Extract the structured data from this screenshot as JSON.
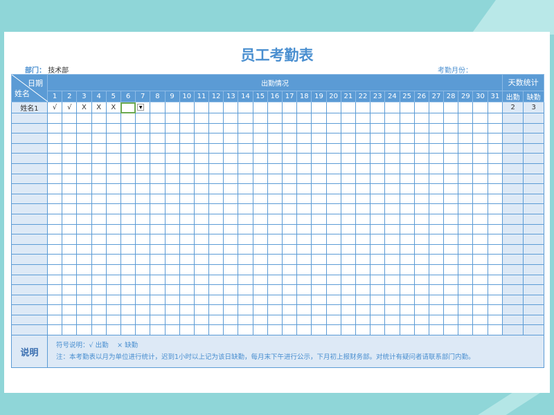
{
  "title": "员工考勤表",
  "dept_label": "部门：",
  "dept_value": "技术部",
  "month_label": "考勤月份：",
  "header": {
    "date": "日期",
    "name": "姓名",
    "attendance": "出勤情况",
    "stats": "天数统计",
    "present": "出勤",
    "absent": "缺勤"
  },
  "days": [
    "1",
    "2",
    "3",
    "4",
    "5",
    "6",
    "7",
    "8",
    "9",
    "10",
    "11",
    "12",
    "13",
    "14",
    "15",
    "16",
    "17",
    "18",
    "19",
    "20",
    "21",
    "22",
    "23",
    "24",
    "25",
    "26",
    "27",
    "28",
    "29",
    "30",
    "31"
  ],
  "rows": [
    {
      "name": "姓名1",
      "marks": [
        "√",
        "√",
        "X",
        "X",
        "X"
      ],
      "present": "2",
      "absent": "3"
    }
  ],
  "empty_rows": 22,
  "note": {
    "label": "说明",
    "legend": "符号说明：√ 出勤　 × 缺勤",
    "text": "注：本考勤表以月为单位进行统计，迟到1小时以上记为该日缺勤，每月末下午进行公示，下月初上报财务部。对统计有疑问者请联系部门内勤。"
  },
  "colors": {
    "header": "#5b9bd5",
    "light": "#dde9f6",
    "title": "#4a8fd0",
    "selection": "#6aa84f"
  }
}
